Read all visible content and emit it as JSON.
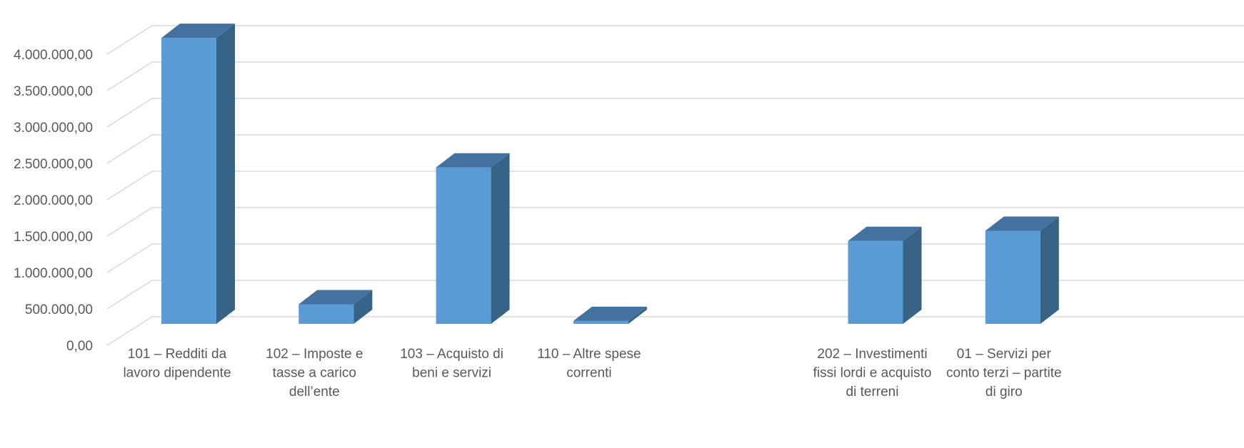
{
  "chart_data": {
    "type": "bar",
    "style": "3d-column",
    "grid": true,
    "legend": "none",
    "ylim": [
      0,
      4000000
    ],
    "ytick_values": [
      0,
      500000,
      1000000,
      1500000,
      2000000,
      2500000,
      3000000,
      3500000,
      4000000
    ],
    "ytick_labels": [
      "0,00",
      "500.000,00",
      "1.000.000,00",
      "1.500.000,00",
      "2.000.000,00",
      "2.500.000,00",
      "3.000.000,00",
      "3.500.000,00",
      "4.000.000,00"
    ],
    "categories": [
      [
        "101 – Redditi da",
        "lavoro dipendente"
      ],
      [
        "102 – Imposte e",
        "tasse a carico",
        "dell’ente"
      ],
      [
        "103 – Acquisto di",
        "beni e servizi"
      ],
      [
        "110 – Altre spese",
        "correnti"
      ],
      [],
      [
        "202 – Investimenti",
        "fissi lordi e acquisto",
        "di terreni"
      ],
      [
        "01 – Servizi per",
        "conto terzi – partite",
        "di giro"
      ]
    ],
    "values": [
      3930000,
      270000,
      2150000,
      40000,
      0,
      1140000,
      1280000
    ],
    "colors": {
      "front": "#5b9bd5",
      "side": "#376387",
      "top": "#4472a0",
      "grid": "#d9d9d9",
      "text": "#595959"
    }
  }
}
